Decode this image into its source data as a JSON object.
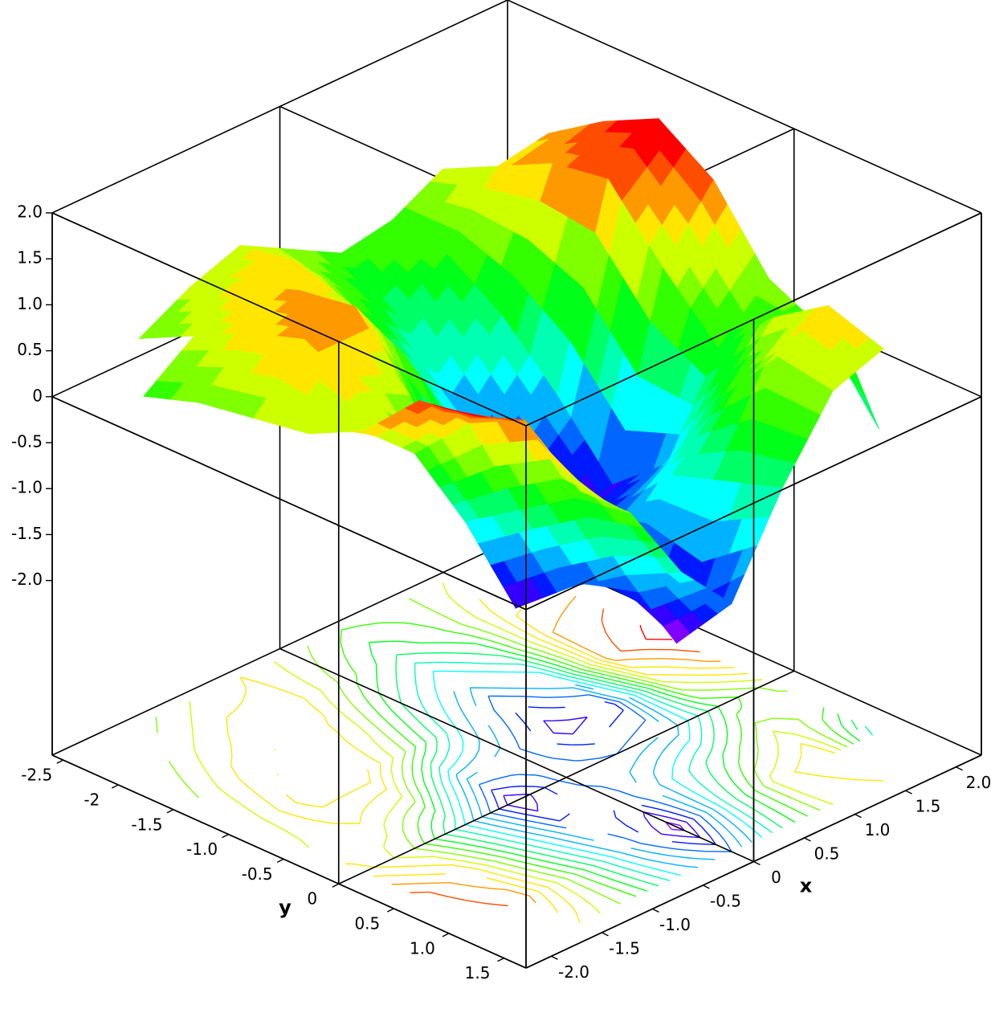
{
  "chart_data": {
    "type": "surface",
    "x": [
      -2,
      -1.5,
      -1,
      -0.5,
      0,
      0.5,
      1,
      1.5,
      2
    ],
    "y": [
      -2.5,
      -2,
      -1.5,
      -1,
      -0.5,
      0,
      0.5,
      1,
      1.5
    ],
    "z": [
      [
        null,
        0.3,
        0.6,
        0.8,
        0.5,
        0.2,
        0.3,
        0.6,
        null
      ],
      [
        0.2,
        0.6,
        0.9,
        0.9,
        0.3,
        -0.2,
        0.2,
        0.9,
        1.0
      ],
      [
        0.4,
        0.9,
        1.1,
        0.7,
        -0.2,
        -0.8,
        -0.2,
        1.2,
        1.4
      ],
      [
        0.5,
        1.1,
        1.2,
        0.4,
        -0.6,
        -1.4,
        -0.8,
        1.3,
        1.7
      ],
      [
        0.6,
        0.8,
        0.5,
        -0.9,
        -1.1,
        -1.7,
        -1.5,
        0.6,
        1.3
      ],
      [
        0.9,
        0.4,
        -0.6,
        -1.8,
        -1.1,
        -1.2,
        -1.0,
        0.0,
        0.5
      ],
      [
        1.5,
        1.0,
        -0.2,
        -1.3,
        -1.4,
        -0.6,
        0.0,
        0.6,
        0.2
      ],
      [
        1.6,
        1.3,
        0.2,
        -0.9,
        -1.9,
        -0.4,
        0.7,
        1.0,
        -0.6
      ],
      [
        null,
        0.8,
        0.3,
        -0.6,
        -1.2,
        -0.2,
        0.6,
        0.8,
        null
      ]
    ],
    "xlim": [
      -2.25,
      2.25
    ],
    "ylim": [
      -2.6,
      1.7
    ],
    "zlim": [
      -3.9,
      2.0
    ],
    "xticks": [
      {
        "value": -2,
        "label": "-2.0"
      },
      -1.5,
      {
        "value": -1,
        "label": "-1.0"
      },
      -0.5,
      0,
      0.5,
      {
        "value": 1,
        "label": "1.0"
      },
      1.5,
      {
        "value": 2,
        "label": "2.0"
      }
    ],
    "yticks": [
      -2.5,
      -2,
      -1.5,
      {
        "value": -1,
        "label": "-1.0"
      },
      -0.5,
      0,
      0.5,
      {
        "value": 1,
        "label": "1.0"
      },
      1.5
    ],
    "zticks": [
      {
        "value": 2,
        "label": "2.0"
      },
      1.5,
      {
        "value": 1,
        "label": "1.0"
      },
      0.5,
      0,
      -0.5,
      {
        "value": -1,
        "label": "-1.0"
      },
      -1.5,
      {
        "value": -2,
        "label": "-2.0"
      }
    ],
    "xlabel": "x",
    "ylabel": "y",
    "colormap": "rainbow",
    "floor_contours": true
  }
}
